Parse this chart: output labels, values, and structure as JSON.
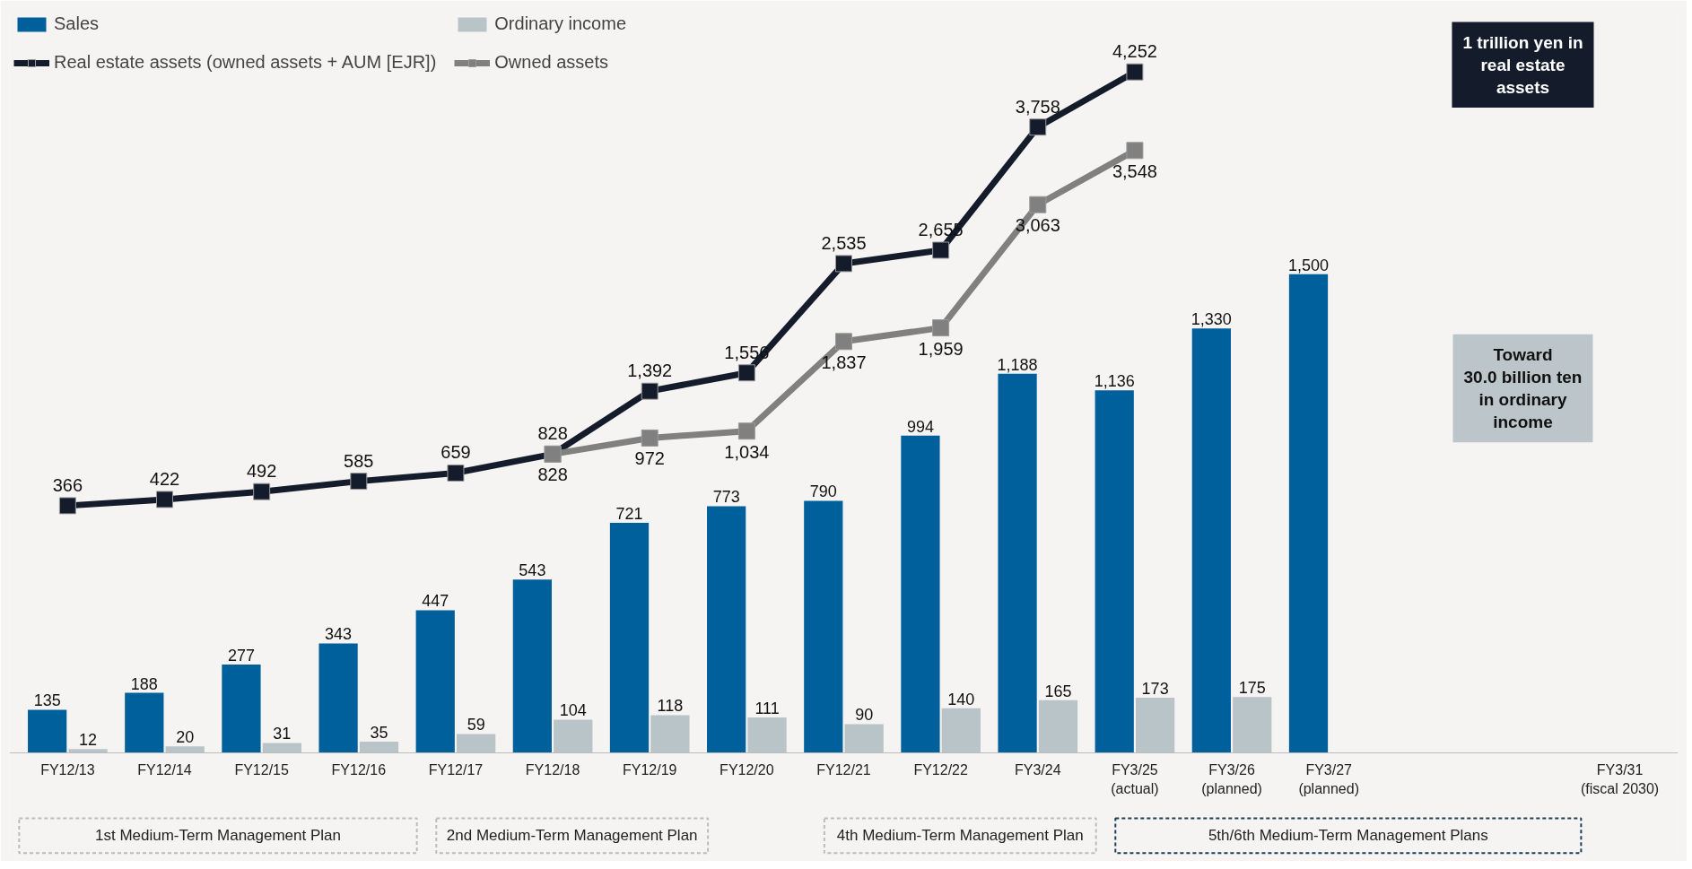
{
  "chart_data": {
    "type": "bar",
    "categories": [
      "FY12/13",
      "FY12/14",
      "FY12/15",
      "FY12/16",
      "FY12/17",
      "FY12/18",
      "FY12/19",
      "FY12/20",
      "FY12/21",
      "FY12/22",
      "FY3/24",
      "FY3/25\n(actual)",
      "FY3/26\n(planned)",
      "FY3/27\n(planned)",
      null,
      null,
      "FY3/31\n(fiscal 2030)"
    ],
    "series": [
      {
        "name": "Sales",
        "color": "#00609c",
        "values": [
          135,
          188,
          277,
          343,
          447,
          543,
          721,
          773,
          790,
          994,
          1188,
          1136,
          1330,
          1500,
          null,
          null,
          null
        ],
        "value_labels": [
          "135",
          "188",
          "277",
          "343",
          "447",
          "543",
          "721",
          "773",
          "790",
          "994",
          "1,188",
          "1,136",
          "1,330",
          "1,500",
          null,
          null,
          null
        ]
      },
      {
        "name": "Ordinary income",
        "color": "#b9c4c9",
        "values": [
          12,
          20,
          31,
          35,
          59,
          104,
          118,
          111,
          90,
          140,
          165,
          173,
          175,
          null,
          null,
          null,
          null
        ],
        "value_labels": [
          "12",
          "20",
          "31",
          "35",
          "59",
          "104",
          "118",
          "111",
          "90",
          "140",
          "165",
          "173",
          "175",
          null,
          null,
          null,
          null
        ]
      },
      {
        "name": "Real estate assets (owned assets + AUM [EJR])",
        "type": "line",
        "axis": "y2",
        "color": "#141c2b",
        "values": [
          366,
          422,
          492,
          585,
          659,
          828,
          1392,
          1556,
          2535,
          2655,
          3758,
          4252,
          null,
          null,
          null,
          null,
          null
        ],
        "value_labels": [
          "366",
          "422",
          "492",
          "585",
          "659",
          "828",
          "1,392",
          "1,556",
          "2,535",
          "2,655",
          "3,758",
          "4,252",
          null,
          null,
          null,
          null,
          null
        ]
      },
      {
        "name": "Owned assets",
        "type": "line",
        "axis": "y2",
        "color": "#808080",
        "values": [
          null,
          null,
          null,
          null,
          null,
          828,
          972,
          1034,
          1837,
          1959,
          3063,
          3548,
          null,
          null,
          null,
          null,
          null
        ],
        "value_labels": [
          null,
          null,
          null,
          null,
          null,
          "828",
          "972",
          "1,034",
          "1,837",
          "1,959",
          "3,063",
          "3,548",
          null,
          null,
          null,
          null,
          null
        ]
      }
    ],
    "ylim": [
      0,
      2330
    ],
    "y2lim": [
      -1848,
      4812
    ],
    "marker": "square",
    "legend": "top left",
    "tick_labels": "x",
    "annotations": [
      "1 trillion yen in\nreal estate\nassets",
      "Toward\n30.0 billion ten\nin ordinary\nincome",
      "1st Medium-Term Management Plan",
      "2nd Medium-Term Management Plan",
      "4th Medium-Term Management Plan",
      "5th/6th Medium-Term Management Plans"
    ]
  }
}
